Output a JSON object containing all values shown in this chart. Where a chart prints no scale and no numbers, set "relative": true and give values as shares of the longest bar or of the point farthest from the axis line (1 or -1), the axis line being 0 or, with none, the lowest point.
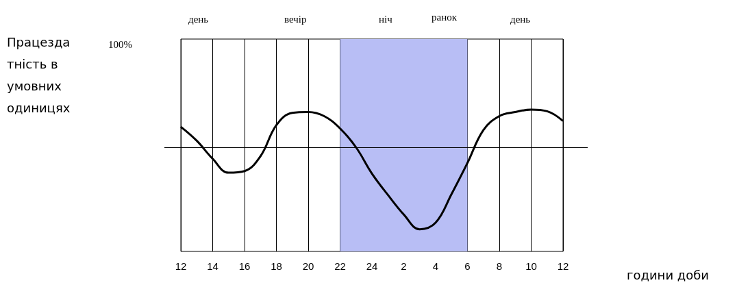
{
  "chart_data": {
    "type": "line",
    "relative": true,
    "xlabel": "години доби",
    "categories": [
      "12",
      null,
      "14",
      null,
      "16",
      null,
      "18",
      null,
      "20",
      null,
      "22",
      null,
      "24",
      null,
      "2",
      null,
      "4",
      null,
      "6",
      null,
      "8",
      null,
      "10",
      null,
      "12"
    ],
    "series": [
      {
        "color": "#000000",
        "values": [
          0.25,
          0.08,
          -0.14,
          -0.31,
          -0.29,
          -0.11,
          0.27,
          0.42,
          0.43,
          0.38,
          0.23,
          0,
          -0.32,
          -0.58,
          -0.82,
          -1,
          -0.92,
          -0.57,
          -0.19,
          0.21,
          0.38,
          0.43,
          0.46,
          0.44,
          0.32
        ]
      }
    ],
    "bands": [
      {
        "axis": "x",
        "from": "22",
        "to": "6",
        "color": "#b8bef5"
      }
    ],
    "annotations": [
      "100%",
      "день",
      "вечір",
      "ніч",
      "ранок",
      "день",
      "Працездатність в умовних одиницях"
    ],
    "grid": "x",
    "marker": "none",
    "line_style": "solid"
  }
}
